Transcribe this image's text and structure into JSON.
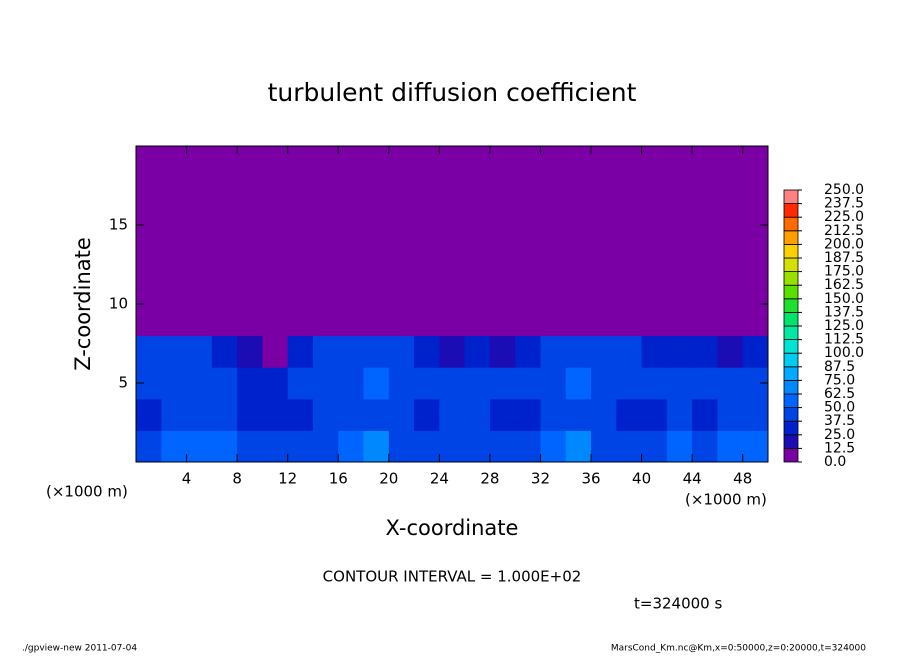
{
  "chart_data": {
    "type": "heatmap",
    "title": "turbulent diffusion coefficient",
    "x_label": "X-coordinate",
    "y_label": "Z-coordinate",
    "x_unit": "(×1000 m)",
    "y_unit": "(×1000 m)",
    "xlim": [
      0,
      50
    ],
    "ylim": [
      0,
      20
    ],
    "xticks": [
      4,
      8,
      12,
      16,
      20,
      24,
      28,
      32,
      36,
      40,
      44,
      48
    ],
    "yticks": [
      5,
      10,
      15
    ],
    "x_bins": [
      0,
      2,
      4,
      6,
      8,
      10,
      12,
      14,
      16,
      18,
      20,
      22,
      24,
      26,
      28,
      30,
      32,
      34,
      36,
      38,
      40,
      42,
      44,
      46,
      48,
      50
    ],
    "y_bins": [
      0,
      2,
      4,
      6,
      8,
      10,
      12,
      14,
      16,
      18,
      20
    ],
    "values": [
      [
        45,
        50,
        55,
        60,
        45,
        40,
        40,
        45,
        55,
        70,
        45,
        40,
        45,
        40,
        45,
        45,
        55,
        65,
        45,
        40,
        45,
        50,
        45,
        50,
        55
      ],
      [
        35,
        40,
        45,
        40,
        30,
        30,
        35,
        40,
        45,
        45,
        40,
        35,
        40,
        45,
        35,
        35,
        40,
        45,
        40,
        35,
        35,
        40,
        35,
        40,
        45
      ],
      [
        45,
        40,
        45,
        40,
        35,
        30,
        40,
        45,
        45,
        50,
        45,
        40,
        40,
        45,
        40,
        45,
        45,
        50,
        45,
        40,
        40,
        45,
        40,
        45,
        45
      ],
      [
        40,
        45,
        40,
        35,
        15,
        10,
        30,
        40,
        45,
        40,
        40,
        35,
        20,
        25,
        20,
        35,
        45,
        40,
        45,
        40,
        35,
        35,
        25,
        20,
        30
      ],
      [
        0,
        5,
        0,
        0,
        0,
        0,
        0,
        0,
        5,
        0,
        0,
        0,
        0,
        0,
        0,
        0,
        5,
        5,
        5,
        0,
        0,
        0,
        0,
        0,
        0
      ],
      [
        5,
        0,
        0,
        0,
        5,
        0,
        0,
        5,
        0,
        0,
        0,
        5,
        0,
        0,
        5,
        0,
        0,
        5,
        5,
        0,
        0,
        0,
        5,
        0,
        5
      ],
      [
        0,
        0,
        0,
        0,
        0,
        0,
        0,
        0,
        0,
        0,
        0,
        0,
        5,
        0,
        0,
        0,
        0,
        0,
        0,
        0,
        0,
        0,
        0,
        0,
        5
      ],
      [
        0,
        0,
        0,
        0,
        0,
        0,
        0,
        0,
        0,
        0,
        0,
        0,
        0,
        0,
        0,
        0,
        0,
        0,
        0,
        0,
        0,
        0,
        0,
        0,
        0
      ],
      [
        0,
        0,
        0,
        0,
        0,
        0,
        0,
        0,
        0,
        0,
        0,
        0,
        0,
        0,
        0,
        0,
        0,
        0,
        0,
        0,
        0,
        0,
        0,
        0,
        0
      ],
      [
        0,
        0,
        0,
        0,
        0,
        0,
        0,
        0,
        0,
        0,
        0,
        0,
        0,
        0,
        0,
        0,
        0,
        0,
        0,
        0,
        0,
        0,
        0,
        0,
        0
      ]
    ],
    "colorbar": {
      "ticks": [
        {
          "value": 0,
          "label": "0.0"
        },
        12.5,
        {
          "value": 25,
          "label": "25.0"
        },
        37.5,
        {
          "value": 50,
          "label": "50.0"
        },
        62.5,
        {
          "value": 75,
          "label": "75.0"
        },
        87.5,
        {
          "value": 100,
          "label": "100.0"
        },
        112.5,
        {
          "value": 125,
          "label": "125.0"
        },
        137.5,
        {
          "value": 150,
          "label": "150.0"
        },
        162.5,
        {
          "value": 175,
          "label": "175.0"
        },
        187.5,
        {
          "value": 200,
          "label": "200.0"
        },
        212.5,
        {
          "value": 225,
          "label": "225.0"
        },
        237.5,
        {
          "value": 250,
          "label": "250.0"
        }
      ],
      "colors": [
        "#7a00a6",
        "#1c0cb4",
        "#0022cc",
        "#0044e6",
        "#0064ff",
        "#0088ff",
        "#00aaff",
        "#00ccf0",
        "#00e4d4",
        "#00e8a4",
        "#00e46c",
        "#1ee030",
        "#5ae000",
        "#98e000",
        "#d4e000",
        "#ffd000",
        "#ffa000",
        "#ff6a00",
        "#ff2a00",
        "#ff8080"
      ]
    },
    "annotations": {
      "contour": "CONTOUR INTERVAL = 1.000E+02",
      "time": "t=324000 s",
      "footer_left": "./gpview-new  2011-07-04",
      "footer_right": "MarsCond_Km.nc@Km,x=0:50000,z=0:20000,t=324000"
    }
  }
}
